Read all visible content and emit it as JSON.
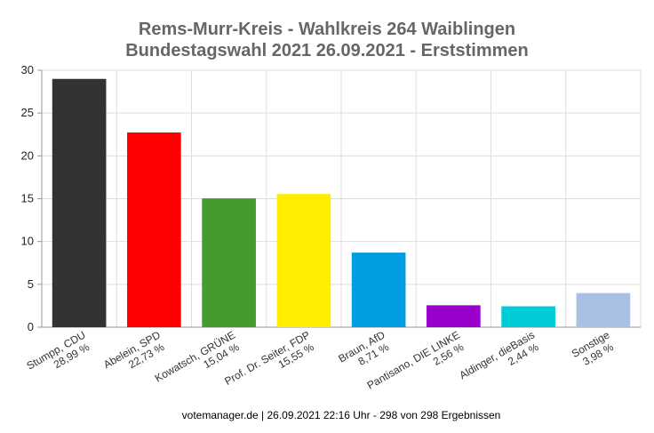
{
  "chart_data": {
    "type": "bar",
    "title": "Rems-Murr-Kreis - Wahlkreis 264 Waiblingen",
    "subtitle": "Bundestagswahl 2021 26.09.2021  - Erststimmen",
    "categories": [
      "Stumpp, CDU",
      "Abelein, SPD",
      "Kowatsch, GRÜNE",
      "Prof. Dr. Seiter, FDP",
      "Braun, AfD",
      "Pantisano, DIE LINKE",
      "Aldinger, dieBasis",
      "Sonstige"
    ],
    "values": [
      28.99,
      22.73,
      15.04,
      15.55,
      8.71,
      2.56,
      2.44,
      3.98
    ],
    "value_labels": [
      "28,99 %",
      "22,73 %",
      "15,04 %",
      "15,55 %",
      "8,71 %",
      "2,56 %",
      "2,44 %",
      "3,98 %"
    ],
    "colors": [
      "#333333",
      "#ff0000",
      "#469a2e",
      "#ffed00",
      "#009ee0",
      "#9a00cc",
      "#00ccd8",
      "#aabfe4"
    ],
    "yticks": [
      "0",
      "5",
      "10",
      "15",
      "20",
      "25",
      "30"
    ],
    "ylim": [
      0,
      30
    ],
    "grid": true,
    "xlabel": "",
    "ylabel": ""
  },
  "footer": "votemanager.de | 26.09.2021 22:16 Uhr - 298 von 298 Ergebnissen"
}
